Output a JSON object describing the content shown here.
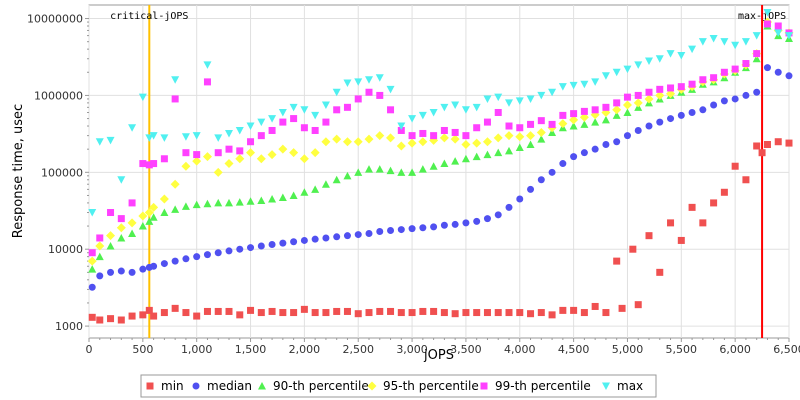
{
  "chart_data": {
    "type": "scatter",
    "xlabel": "jOPS",
    "ylabel": "Response time, usec",
    "xlim": [
      0,
      6500
    ],
    "ylim": [
      700,
      15000000
    ],
    "y_scale": "log",
    "grid": true,
    "legend": "bottom",
    "x_ticks": [
      "0",
      "500",
      "1,000",
      "1,500",
      "2,000",
      "2,500",
      "3,000",
      "3,500",
      "4,000",
      "4,500",
      "5,000",
      "5,500",
      "6,000",
      "6,500"
    ],
    "y_ticks": [
      "1000",
      "10000",
      "100000",
      "1000000",
      "10000000"
    ],
    "markers": [
      {
        "label": "critical-jOPS",
        "x": 560,
        "color": "#ffc000"
      },
      {
        "label": "max-jOPS",
        "x": 6250,
        "color": "#ff0000"
      }
    ],
    "series": [
      {
        "name": "min",
        "color": "#f05050",
        "shape": "square",
        "x": [
          30,
          100,
          200,
          300,
          400,
          500,
          560,
          600,
          700,
          800,
          900,
          1000,
          1100,
          1200,
          1300,
          1400,
          1500,
          1600,
          1700,
          1800,
          1900,
          2000,
          2100,
          2200,
          2300,
          2400,
          2500,
          2600,
          2700,
          2800,
          2900,
          3000,
          3100,
          3200,
          3300,
          3400,
          3500,
          3600,
          3700,
          3800,
          3900,
          4000,
          4100,
          4200,
          4300,
          4400,
          4500,
          4600,
          4700,
          4800,
          4900,
          4950,
          5050,
          5100,
          5200,
          5300,
          5400,
          5500,
          5600,
          5700,
          5800,
          5900,
          6000,
          6100,
          6200,
          6250,
          6300,
          6400,
          6500
        ],
        "y": [
          1300,
          1200,
          1250,
          1200,
          1350,
          1400,
          1600,
          1350,
          1500,
          1700,
          1500,
          1350,
          1550,
          1550,
          1550,
          1400,
          1600,
          1500,
          1550,
          1500,
          1500,
          1650,
          1500,
          1500,
          1550,
          1550,
          1450,
          1500,
          1550,
          1550,
          1500,
          1500,
          1550,
          1550,
          1500,
          1450,
          1500,
          1500,
          1500,
          1500,
          1500,
          1500,
          1450,
          1500,
          1400,
          1600,
          1600,
          1500,
          1800,
          1500,
          7000,
          1700,
          10000,
          1900,
          15000,
          5000,
          22000,
          13000,
          35000,
          22000,
          40000,
          55000,
          120000,
          80000,
          220000,
          180000,
          230000,
          250000,
          240000
        ]
      },
      {
        "name": "median",
        "color": "#5050f0",
        "shape": "circle",
        "x": [
          30,
          100,
          200,
          300,
          400,
          500,
          560,
          600,
          700,
          800,
          900,
          1000,
          1100,
          1200,
          1300,
          1400,
          1500,
          1600,
          1700,
          1800,
          1900,
          2000,
          2100,
          2200,
          2300,
          2400,
          2500,
          2600,
          2700,
          2800,
          2900,
          3000,
          3100,
          3200,
          3300,
          3400,
          3500,
          3600,
          3700,
          3800,
          3900,
          4000,
          4100,
          4200,
          4300,
          4400,
          4500,
          4600,
          4700,
          4800,
          4900,
          5000,
          5100,
          5200,
          5300,
          5400,
          5500,
          5600,
          5700,
          5800,
          5900,
          6000,
          6100,
          6200,
          6300,
          6400,
          6500
        ],
        "y": [
          3200,
          4500,
          5000,
          5200,
          5000,
          5500,
          5800,
          6000,
          6500,
          7000,
          7500,
          8000,
          8500,
          9000,
          9500,
          10000,
          10500,
          11000,
          11500,
          12000,
          12500,
          13000,
          13500,
          14000,
          14500,
          15000,
          15500,
          16000,
          17000,
          17500,
          18000,
          18500,
          19000,
          19500,
          20500,
          21000,
          22000,
          23000,
          25000,
          28000,
          35000,
          45000,
          60000,
          80000,
          100000,
          130000,
          160000,
          180000,
          200000,
          230000,
          250000,
          300000,
          350000,
          400000,
          450000,
          500000,
          550000,
          600000,
          650000,
          750000,
          850000,
          900000,
          1000000,
          1100000,
          2300000,
          2000000,
          1800000
        ]
      },
      {
        "name": "90-th percentile",
        "color": "#50f050",
        "shape": "triangle-up",
        "x": [
          30,
          100,
          200,
          300,
          400,
          500,
          560,
          600,
          700,
          800,
          900,
          1000,
          1100,
          1200,
          1300,
          1400,
          1500,
          1600,
          1700,
          1800,
          1900,
          2000,
          2100,
          2200,
          2300,
          2400,
          2500,
          2600,
          2700,
          2800,
          2900,
          3000,
          3100,
          3200,
          3300,
          3400,
          3500,
          3600,
          3700,
          3800,
          3900,
          4000,
          4100,
          4200,
          4300,
          4400,
          4500,
          4600,
          4700,
          4800,
          4900,
          5000,
          5100,
          5200,
          5300,
          5400,
          5500,
          5600,
          5700,
          5800,
          5900,
          6000,
          6100,
          6200,
          6300,
          6400,
          6500
        ],
        "y": [
          5500,
          8000,
          11000,
          14000,
          16000,
          20000,
          23000,
          26000,
          30000,
          33000,
          36000,
          38000,
          39000,
          40000,
          40000,
          41000,
          42000,
          43000,
          45000,
          47000,
          50000,
          55000,
          60000,
          70000,
          80000,
          90000,
          100000,
          110000,
          110000,
          105000,
          100000,
          100000,
          110000,
          120000,
          130000,
          140000,
          150000,
          160000,
          170000,
          180000,
          190000,
          210000,
          230000,
          270000,
          330000,
          380000,
          400000,
          420000,
          450000,
          480000,
          550000,
          600000,
          700000,
          800000,
          900000,
          1000000,
          1100000,
          1200000,
          1400000,
          1500000,
          1700000,
          2000000,
          2300000,
          3000000,
          8000000,
          6000000,
          5500000
        ]
      },
      {
        "name": "95-th percentile",
        "color": "#ffff40",
        "shape": "diamond",
        "x": [
          30,
          100,
          200,
          300,
          400,
          500,
          560,
          600,
          700,
          800,
          900,
          1000,
          1100,
          1200,
          1300,
          1400,
          1500,
          1600,
          1700,
          1800,
          1900,
          2000,
          2100,
          2200,
          2300,
          2400,
          2500,
          2600,
          2700,
          2800,
          2900,
          3000,
          3100,
          3200,
          3300,
          3400,
          3500,
          3600,
          3700,
          3800,
          3900,
          4000,
          4100,
          4200,
          4300,
          4400,
          4500,
          4600,
          4700,
          4800,
          4900,
          5000,
          5100,
          5200,
          5300,
          5400,
          5500,
          5600,
          5700,
          5800,
          5900,
          6000,
          6100,
          6200,
          6300,
          6400,
          6500
        ],
        "y": [
          7000,
          11000,
          15000,
          19000,
          22000,
          27000,
          30000,
          35000,
          45000,
          70000,
          120000,
          140000,
          160000,
          100000,
          130000,
          150000,
          180000,
          150000,
          170000,
          200000,
          180000,
          150000,
          180000,
          250000,
          270000,
          250000,
          250000,
          270000,
          300000,
          280000,
          220000,
          240000,
          250000,
          260000,
          280000,
          270000,
          230000,
          240000,
          250000,
          280000,
          300000,
          290000,
          300000,
          330000,
          380000,
          430000,
          480000,
          520000,
          560000,
          600000,
          650000,
          750000,
          800000,
          900000,
          1000000,
          1050000,
          1200000,
          1300000,
          1500000,
          1600000,
          1900000,
          2100000,
          2500000,
          3500000,
          9000000,
          7000000,
          6500000
        ]
      },
      {
        "name": "99-th percentile",
        "color": "#ff40ff",
        "shape": "square",
        "x": [
          30,
          100,
          200,
          300,
          400,
          500,
          560,
          600,
          700,
          800,
          900,
          1000,
          1100,
          1200,
          1300,
          1400,
          1500,
          1600,
          1700,
          1800,
          1900,
          2000,
          2100,
          2200,
          2300,
          2400,
          2500,
          2600,
          2700,
          2800,
          2900,
          3000,
          3100,
          3200,
          3300,
          3400,
          3500,
          3600,
          3700,
          3800,
          3900,
          4000,
          4100,
          4200,
          4300,
          4400,
          4500,
          4600,
          4700,
          4800,
          4900,
          5000,
          5100,
          5200,
          5300,
          5400,
          5500,
          5600,
          5700,
          5800,
          5900,
          6000,
          6100,
          6200,
          6300,
          6400,
          6500
        ],
        "y": [
          9000,
          14000,
          30000,
          25000,
          40000,
          130000,
          125000,
          130000,
          150000,
          900000,
          180000,
          170000,
          1500000,
          180000,
          200000,
          190000,
          250000,
          300000,
          350000,
          450000,
          500000,
          380000,
          350000,
          450000,
          650000,
          700000,
          900000,
          1100000,
          1000000,
          650000,
          350000,
          300000,
          320000,
          300000,
          350000,
          330000,
          300000,
          380000,
          450000,
          600000,
          400000,
          380000,
          420000,
          470000,
          420000,
          550000,
          580000,
          620000,
          650000,
          700000,
          800000,
          950000,
          1000000,
          1100000,
          1200000,
          1250000,
          1300000,
          1400000,
          1600000,
          1700000,
          2000000,
          2200000,
          2600000,
          3500000,
          8500000,
          8000000,
          6500000
        ]
      },
      {
        "name": "max",
        "color": "#50f0f0",
        "shape": "triangle-down",
        "x": [
          30,
          100,
          200,
          300,
          400,
          500,
          560,
          600,
          700,
          800,
          900,
          1000,
          1100,
          1200,
          1300,
          1400,
          1500,
          1600,
          1700,
          1800,
          1900,
          2000,
          2100,
          2200,
          2300,
          2400,
          2500,
          2600,
          2700,
          2800,
          2900,
          3000,
          3100,
          3200,
          3300,
          3400,
          3500,
          3600,
          3700,
          3800,
          3900,
          4000,
          4100,
          4200,
          4300,
          4400,
          4500,
          4600,
          4700,
          4800,
          4900,
          5000,
          5100,
          5200,
          5300,
          5400,
          5500,
          5600,
          5700,
          5800,
          5900,
          6000,
          6100,
          6200,
          6300,
          6400,
          6500
        ],
        "y": [
          30000,
          250000,
          260000,
          80000,
          380000,
          950000,
          280000,
          300000,
          280000,
          1600000,
          290000,
          300000,
          2500000,
          280000,
          320000,
          350000,
          400000,
          450000,
          500000,
          600000,
          700000,
          650000,
          550000,
          750000,
          1100000,
          1450000,
          1500000,
          1600000,
          1700000,
          1200000,
          400000,
          500000,
          550000,
          600000,
          700000,
          750000,
          650000,
          700000,
          900000,
          950000,
          800000,
          850000,
          900000,
          1000000,
          1100000,
          1300000,
          1350000,
          1400000,
          1500000,
          1800000,
          2000000,
          2200000,
          2500000,
          2800000,
          3000000,
          3500000,
          3300000,
          4000000,
          5000000,
          5500000,
          5000000,
          4500000,
          5000000,
          6000000,
          12000000,
          6500000,
          6000000
        ]
      }
    ]
  }
}
